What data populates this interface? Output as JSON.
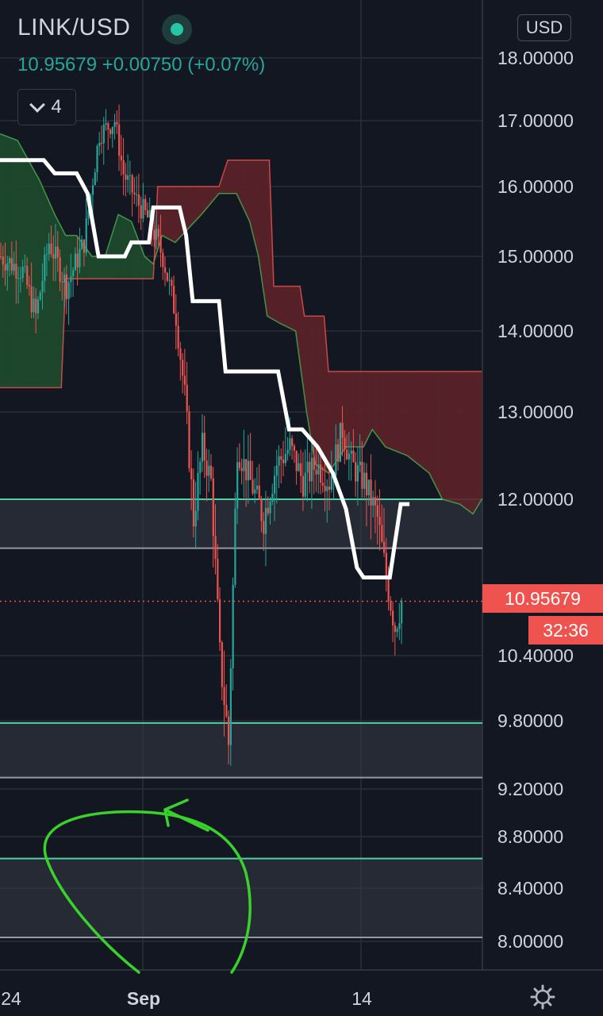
{
  "header": {
    "symbol": "LINK/USD",
    "quote": "10.95679 +0.00750 (+0.07%)",
    "indicator_count": "4",
    "currency": "USD"
  },
  "price_label": "10.95679",
  "timer_label": "32:36",
  "colors": {
    "background": "#131722",
    "up": "#26a69a",
    "down": "#ef5350",
    "grid": "#2a2e39",
    "kumo_bull": "#1e4a2c",
    "kumo_bear": "#5c2229",
    "baseline": "#ffffff",
    "support_line": "#4fd1a5",
    "zone_fill": "#363a45",
    "annotation": "#39d12b"
  },
  "chart_data": {
    "type": "candlestick",
    "symbol": "LINK/USD",
    "y_ticks": [
      {
        "value": 18.0,
        "label": "18.00000"
      },
      {
        "value": 17.0,
        "label": "17.00000"
      },
      {
        "value": 16.0,
        "label": "16.00000"
      },
      {
        "value": 15.0,
        "label": "15.00000"
      },
      {
        "value": 14.0,
        "label": "14.00000"
      },
      {
        "value": 13.0,
        "label": "13.00000"
      },
      {
        "value": 12.0,
        "label": "12.00000"
      },
      {
        "value": 10.4,
        "label": "10.40000"
      },
      {
        "value": 9.8,
        "label": "9.80000"
      },
      {
        "value": 9.2,
        "label": "9.20000"
      },
      {
        "value": 8.8,
        "label": "8.80000"
      },
      {
        "value": 8.4,
        "label": "8.40000"
      },
      {
        "value": 8.0,
        "label": "8.00000"
      }
    ],
    "x_ticks": [
      "24",
      "Sep",
      "14"
    ],
    "last_price": 10.95679,
    "change": 0.0075,
    "change_pct": 0.07,
    "horizontal_zones": [
      {
        "top": 12.0,
        "bottom": 11.5
      },
      {
        "top": 9.78,
        "bottom": 9.3
      },
      {
        "top": 8.63,
        "bottom": 8.03
      }
    ],
    "baseline_kijun": [
      {
        "x": 0,
        "y": 16.4
      },
      {
        "x": 20,
        "y": 16.4
      },
      {
        "x": 25,
        "y": 16.2
      },
      {
        "x": 35,
        "y": 16.2
      },
      {
        "x": 40,
        "y": 15.9
      },
      {
        "x": 45,
        "y": 15.0
      },
      {
        "x": 57,
        "y": 15.0
      },
      {
        "x": 60,
        "y": 15.2
      },
      {
        "x": 68,
        "y": 15.2
      },
      {
        "x": 70,
        "y": 15.7
      },
      {
        "x": 82,
        "y": 15.7
      },
      {
        "x": 85,
        "y": 15.3
      },
      {
        "x": 88,
        "y": 14.4
      },
      {
        "x": 100,
        "y": 14.4
      },
      {
        "x": 103,
        "y": 13.5
      },
      {
        "x": 127,
        "y": 13.5
      },
      {
        "x": 132,
        "y": 12.8
      },
      {
        "x": 138,
        "y": 12.8
      },
      {
        "x": 145,
        "y": 12.6
      },
      {
        "x": 152,
        "y": 12.3
      },
      {
        "x": 158,
        "y": 11.9
      },
      {
        "x": 163,
        "y": 11.3
      },
      {
        "x": 166,
        "y": 11.2
      },
      {
        "x": 178,
        "y": 11.2
      },
      {
        "x": 183,
        "y": 11.95
      },
      {
        "x": 187,
        "y": 11.95
      }
    ],
    "cloud_span_a": [
      {
        "x": 0,
        "y": 16.8
      },
      {
        "x": 8,
        "y": 16.7
      },
      {
        "x": 18,
        "y": 16.1
      },
      {
        "x": 25,
        "y": 15.6
      },
      {
        "x": 30,
        "y": 15.3
      },
      {
        "x": 35,
        "y": 15.3
      },
      {
        "x": 42,
        "y": 15.0
      },
      {
        "x": 48,
        "y": 15.0
      },
      {
        "x": 54,
        "y": 15.6
      },
      {
        "x": 60,
        "y": 15.5
      },
      {
        "x": 66,
        "y": 15.0
      },
      {
        "x": 70,
        "y": 14.9
      },
      {
        "x": 74,
        "y": 15.3
      },
      {
        "x": 80,
        "y": 15.2
      },
      {
        "x": 86,
        "y": 15.4
      },
      {
        "x": 92,
        "y": 15.6
      },
      {
        "x": 100,
        "y": 15.9
      },
      {
        "x": 108,
        "y": 15.9
      },
      {
        "x": 114,
        "y": 15.5
      },
      {
        "x": 118,
        "y": 15.0
      },
      {
        "x": 122,
        "y": 14.2
      },
      {
        "x": 128,
        "y": 14.1
      },
      {
        "x": 135,
        "y": 14.0
      },
      {
        "x": 140,
        "y": 13.0
      },
      {
        "x": 144,
        "y": 12.4
      },
      {
        "x": 150,
        "y": 12.3
      },
      {
        "x": 158,
        "y": 12.6
      },
      {
        "x": 166,
        "y": 12.6
      },
      {
        "x": 170,
        "y": 12.8
      },
      {
        "x": 176,
        "y": 12.6
      },
      {
        "x": 186,
        "y": 12.5
      },
      {
        "x": 196,
        "y": 12.3
      },
      {
        "x": 202,
        "y": 12.0
      },
      {
        "x": 210,
        "y": 11.95
      },
      {
        "x": 216,
        "y": 11.85
      },
      {
        "x": 220,
        "y": 12.0
      }
    ],
    "cloud_span_b": [
      {
        "x": 0,
        "y": 13.3
      },
      {
        "x": 28,
        "y": 13.3
      },
      {
        "x": 30,
        "y": 14.7
      },
      {
        "x": 70,
        "y": 14.7
      },
      {
        "x": 72,
        "y": 16.0
      },
      {
        "x": 100,
        "y": 16.0
      },
      {
        "x": 104,
        "y": 16.4
      },
      {
        "x": 123,
        "y": 16.4
      },
      {
        "x": 125,
        "y": 14.6
      },
      {
        "x": 137,
        "y": 14.6
      },
      {
        "x": 139,
        "y": 14.2
      },
      {
        "x": 148,
        "y": 14.2
      },
      {
        "x": 150,
        "y": 13.5
      },
      {
        "x": 220,
        "y": 13.5
      }
    ],
    "annotations": [
      "hand-drawn circle with arrow around lowest zone"
    ]
  }
}
